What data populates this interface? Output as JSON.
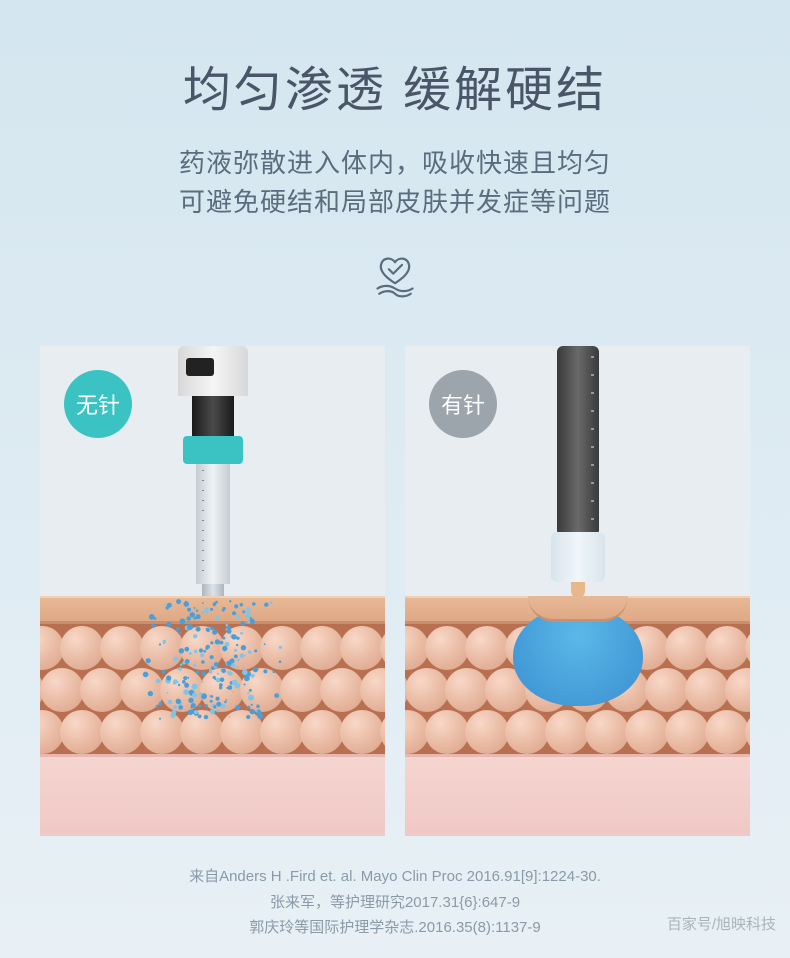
{
  "header": {
    "title": "均匀渗透 缓解硬结",
    "subtitle_line1": "药液弥散进入体内，吸收快速且均匀",
    "subtitle_line2": "可避免硬结和局部皮肤并发症等问题"
  },
  "icon": {
    "name": "care-heart-check-icon",
    "stroke_color": "#5a6c7d"
  },
  "panels": {
    "left": {
      "badge_label": "无针",
      "badge_color": "#3bc3c3",
      "type": "needle-free-diagram",
      "device_colors": {
        "ring": "#3bc3c3",
        "barrel": "#eef2f5",
        "neck": "#2a2a2a"
      },
      "dispersion_color": "#4a9fd8"
    },
    "right": {
      "badge_label": "有针",
      "badge_color": "#9ca5ab",
      "type": "needle-diagram",
      "device_colors": {
        "body": "#555555",
        "holder": "#e8f0f5",
        "tip": "#e8b88a"
      },
      "bolus_color": "#3a8fd0"
    },
    "skin": {
      "surface_color": "#e8b896",
      "cell_color": "#e8b8a0",
      "cell_base": "#b87050",
      "tissue_color": "#f5d5d0",
      "cell_rows": 3,
      "cells_per_row": 10
    }
  },
  "citations": {
    "line1": "来自Anders H .Fird et. al. Mayo Clin Proc 2016.91[9]:1224-30.",
    "line2": "张来军，等护理研究2017.31{6}:647-9",
    "line3": "郭庆玲等国际护理学杂志.2016.35(8):1137-9"
  },
  "watermark": "百家号/旭映科技",
  "colors": {
    "bg_top": "#d4e6f0",
    "bg_bottom": "#e8f0f5",
    "title": "#4a5568",
    "subtitle": "#5a6c7d",
    "citation": "#8a9aa8"
  }
}
